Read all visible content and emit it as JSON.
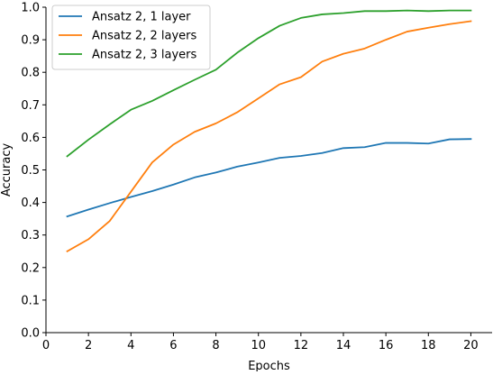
{
  "chart_data": {
    "type": "line",
    "title": "",
    "xlabel": "Epochs",
    "ylabel": "Accuracy",
    "xlim": [
      0,
      21
    ],
    "ylim": [
      0.0,
      1.0
    ],
    "xticks": [
      0,
      2,
      4,
      6,
      8,
      10,
      12,
      14,
      16,
      18,
      20
    ],
    "xtick_labels": [
      "0",
      "2",
      "4",
      "6",
      "8",
      "10",
      "12",
      "14",
      "16",
      "18",
      "20"
    ],
    "yticks": [
      0.0,
      0.1,
      0.2,
      0.3,
      0.4,
      0.5,
      0.6,
      0.7,
      0.8,
      0.9,
      1.0
    ],
    "ytick_labels": [
      "0.0",
      "0.1",
      "0.2",
      "0.3",
      "0.4",
      "0.5",
      "0.6",
      "0.7",
      "0.8",
      "0.9",
      "1.0"
    ],
    "grid": false,
    "legend_position": "top-left",
    "x": [
      1,
      2,
      3,
      4,
      5,
      6,
      7,
      8,
      9,
      10,
      11,
      12,
      13,
      14,
      15,
      16,
      17,
      18,
      19,
      20
    ],
    "series": [
      {
        "name": "Ansatz 2, 1 layer",
        "color": "#1f77b4",
        "values": [
          0.357,
          0.378,
          0.398,
          0.417,
          0.435,
          0.455,
          0.477,
          0.492,
          0.51,
          0.523,
          0.537,
          0.543,
          0.552,
          0.567,
          0.57,
          0.583,
          0.583,
          0.581,
          0.594,
          0.595
        ]
      },
      {
        "name": "Ansatz 2, 2 layers",
        "color": "#ff7f0e",
        "values": [
          0.25,
          0.287,
          0.343,
          0.433,
          0.523,
          0.578,
          0.617,
          0.643,
          0.677,
          0.72,
          0.763,
          0.785,
          0.833,
          0.857,
          0.873,
          0.9,
          0.925,
          0.937,
          0.948,
          0.957
        ]
      },
      {
        "name": "Ansatz 2, 3 layers",
        "color": "#2ca02c",
        "values": [
          0.542,
          0.593,
          0.64,
          0.685,
          0.712,
          0.745,
          0.777,
          0.808,
          0.86,
          0.905,
          0.943,
          0.967,
          0.978,
          0.982,
          0.988,
          0.988,
          0.99,
          0.988,
          0.99,
          0.99
        ]
      }
    ]
  }
}
